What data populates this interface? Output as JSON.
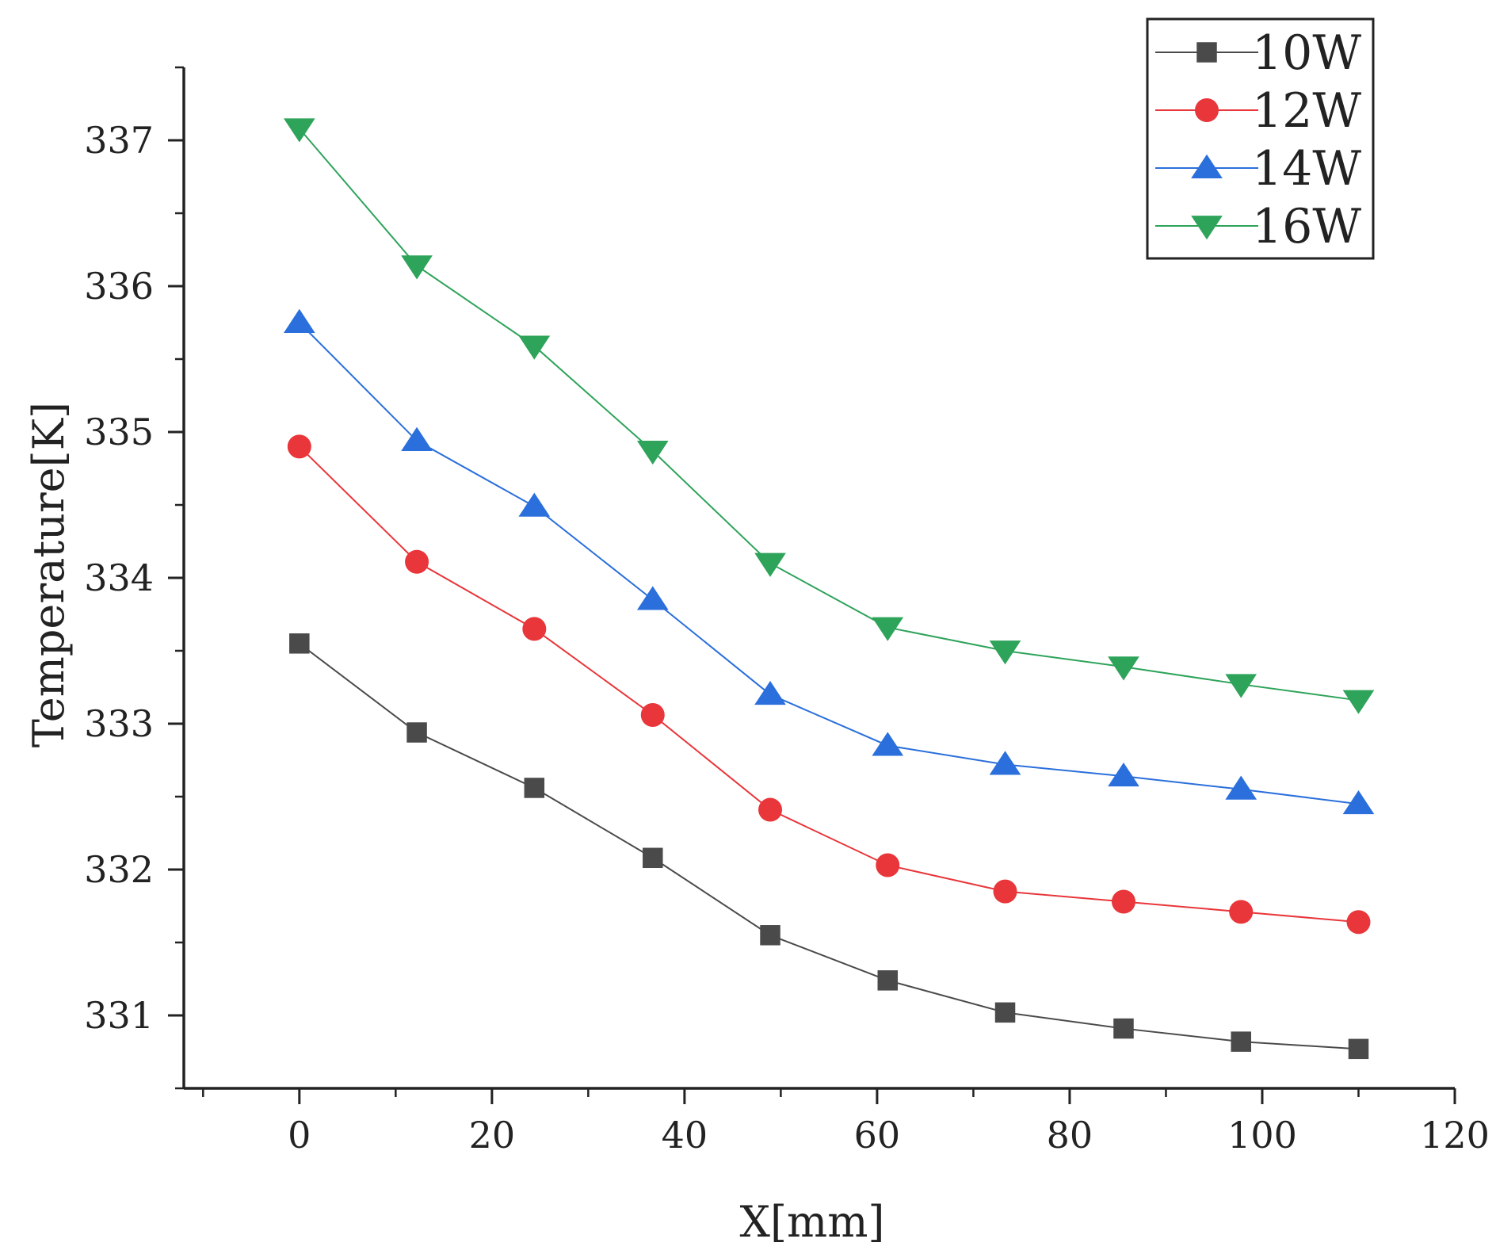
{
  "chart_data": {
    "type": "line",
    "title": "",
    "xlabel": "X[mm]",
    "ylabel": "Temperature[K]",
    "xlim": [
      -12,
      120
    ],
    "ylim": [
      330.5,
      337.5
    ],
    "xticks": [
      0,
      20,
      40,
      60,
      80,
      100,
      120
    ],
    "xtick_labels": [
      "0",
      "20",
      "40",
      "60",
      "80",
      "100",
      "120"
    ],
    "yticks": [
      331,
      332,
      333,
      334,
      335,
      336,
      337
    ],
    "ytick_labels": [
      "331",
      "332",
      "333",
      "334",
      "335",
      "336",
      "337"
    ],
    "x": [
      0,
      12.2,
      24.4,
      36.7,
      48.9,
      61.1,
      73.3,
      85.6,
      97.8,
      110
    ],
    "legend_position": "top-right",
    "series": [
      {
        "name": "10W",
        "color": "#4a4a4a",
        "marker": "square",
        "values": [
          333.55,
          332.94,
          332.56,
          332.08,
          331.55,
          331.24,
          331.02,
          330.91,
          330.82,
          330.77
        ]
      },
      {
        "name": "12W",
        "color": "#e8363a",
        "marker": "circle",
        "values": [
          334.9,
          334.11,
          333.65,
          333.06,
          332.41,
          332.03,
          331.85,
          331.78,
          331.71,
          331.64
        ]
      },
      {
        "name": "14W",
        "color": "#2a6fdb",
        "marker": "triangle-up",
        "values": [
          335.75,
          334.94,
          334.49,
          333.85,
          333.2,
          332.85,
          332.72,
          332.64,
          332.55,
          332.45
        ]
      },
      {
        "name": "16W",
        "color": "#2ea35a",
        "marker": "triangle-down",
        "values": [
          337.08,
          336.14,
          335.59,
          334.87,
          334.1,
          333.66,
          333.5,
          333.39,
          333.27,
          333.16
        ]
      }
    ]
  }
}
